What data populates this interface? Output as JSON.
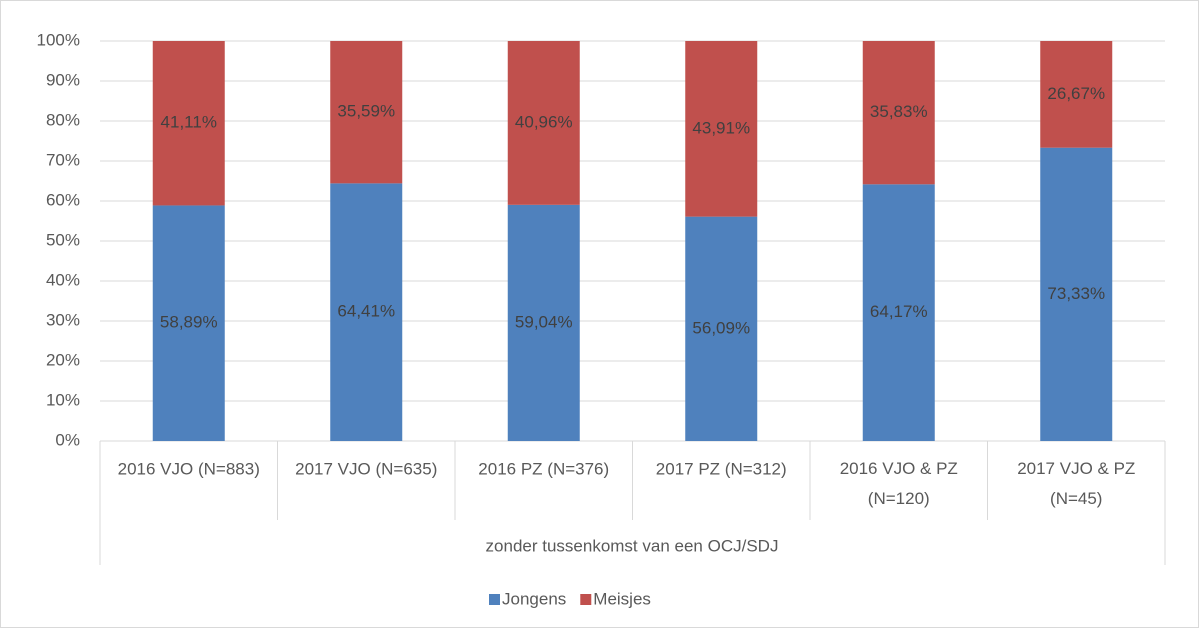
{
  "chart_data": {
    "type": "stacked-bar",
    "categories": [
      "2016 VJO (N=883)",
      "2017 VJO (N=635)",
      "2016 PZ (N=376)",
      "2017 PZ (N=312)",
      "2016 VJO & PZ (N=120)",
      "2017 VJO & PZ (N=45)"
    ],
    "x_label": "zonder tussenkomst van een OCJ/SDJ",
    "series": [
      {
        "name": "Jongens",
        "color": "#4f81bd",
        "values": [
          58.89,
          64.41,
          59.04,
          56.09,
          64.17,
          73.33
        ],
        "value_labels": [
          "58,89%",
          "64,41%",
          "59,04%",
          "56,09%",
          "64,17%",
          "73,33%"
        ]
      },
      {
        "name": "Meisjes",
        "color": "#c0504d",
        "values": [
          41.11,
          35.59,
          40.96,
          43.91,
          35.83,
          26.67
        ],
        "value_labels": [
          "41,11%",
          "35,59%",
          "40,96%",
          "43,91%",
          "35,83%",
          "26,67%"
        ]
      }
    ],
    "ylim": [
      0,
      100
    ],
    "yticks": [
      {
        "value": 0,
        "label": "0%"
      },
      {
        "value": 10,
        "label": "10%"
      },
      {
        "value": 20,
        "label": "20%"
      },
      {
        "value": 30,
        "label": "30%"
      },
      {
        "value": 40,
        "label": "40%"
      },
      {
        "value": 50,
        "label": "50%"
      },
      {
        "value": 60,
        "label": "60%"
      },
      {
        "value": 70,
        "label": "70%"
      },
      {
        "value": 80,
        "label": "80%"
      },
      {
        "value": 90,
        "label": "90%"
      },
      {
        "value": 100,
        "label": "100%"
      }
    ],
    "grid": true,
    "legend": "bottom"
  }
}
